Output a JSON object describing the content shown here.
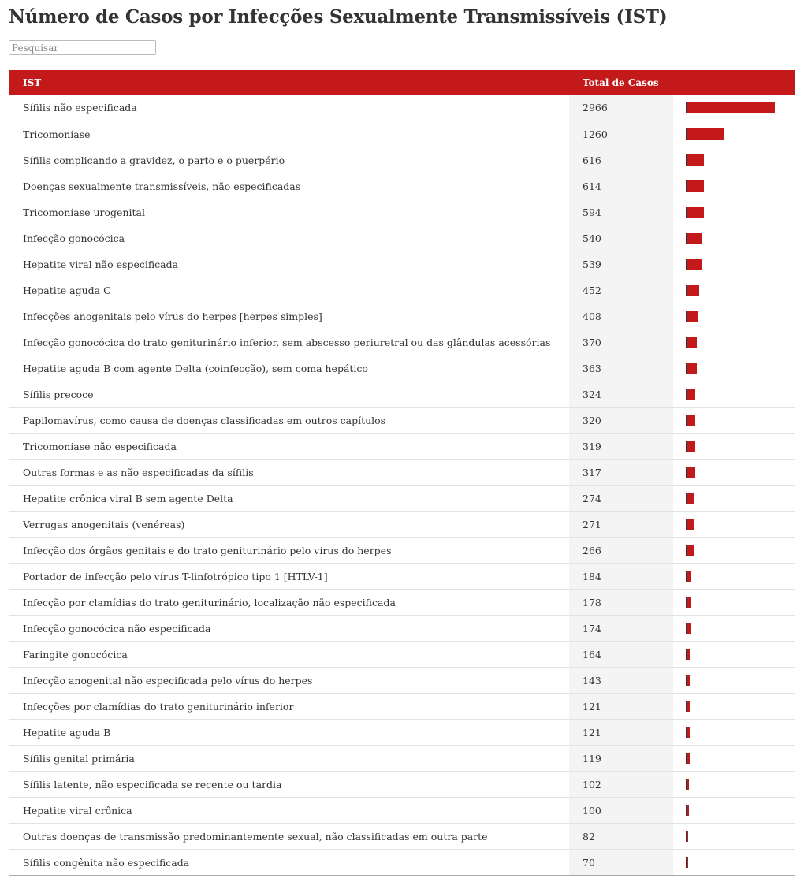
{
  "title": "Número de Casos por Infecções Sexualmente Transmissíveis (IST)",
  "search": {
    "placeholder": "Pesquisar",
    "value": ""
  },
  "colors": {
    "accent": "#c4191a",
    "value_column_bg": "#f4f4f4"
  },
  "chart_data": {
    "type": "table",
    "columns": [
      "IST",
      "Total de Casos"
    ],
    "rows": [
      {
        "label": "Sífilis não especificada",
        "value": 2966
      },
      {
        "label": "Tricomoníase",
        "value": 1260
      },
      {
        "label": "Sífilis complicando a gravidez, o parto e o puerpério",
        "value": 616
      },
      {
        "label": "Doenças sexualmente transmissíveis, não especificadas",
        "value": 614
      },
      {
        "label": "Tricomoníase urogenital",
        "value": 594
      },
      {
        "label": "Infecção gonocócica",
        "value": 540
      },
      {
        "label": "Hepatite viral não especificada",
        "value": 539
      },
      {
        "label": "Hepatite aguda C",
        "value": 452
      },
      {
        "label": "Infecções anogenitais pelo vírus do herpes [herpes simples]",
        "value": 408
      },
      {
        "label": "Infecção gonocócica do trato geniturinário inferior, sem abscesso periuretral ou das glândulas acessórias",
        "value": 370
      },
      {
        "label": "Hepatite aguda B com agente Delta (coinfecção), sem coma hepático",
        "value": 363
      },
      {
        "label": "Sífilis precoce",
        "value": 324
      },
      {
        "label": "Papilomavírus, como causa de doenças classificadas em outros capítulos",
        "value": 320
      },
      {
        "label": "Tricomoníase não especificada",
        "value": 319
      },
      {
        "label": "Outras formas e as não especificadas da sífilis",
        "value": 317
      },
      {
        "label": "Hepatite crônica viral B sem agente Delta",
        "value": 274
      },
      {
        "label": "Verrugas anogenitais (venéreas)",
        "value": 271
      },
      {
        "label": "Infecção dos órgãos genitais e do trato geniturinário pelo vírus do herpes",
        "value": 266
      },
      {
        "label": "Portador de infecção pelo vírus T-linfotrópico tipo 1 [HTLV-1]",
        "value": 184
      },
      {
        "label": "Infecção por clamídias do trato geniturinário, localização não especificada",
        "value": 178
      },
      {
        "label": "Infecção gonocócica não especificada",
        "value": 174
      },
      {
        "label": "Faringite gonocócica",
        "value": 164
      },
      {
        "label": "Infecção anogenital não especificada pelo vírus do herpes",
        "value": 143
      },
      {
        "label": "Infecções por clamídias do trato geniturinário inferior",
        "value": 121
      },
      {
        "label": "Hepatite aguda B",
        "value": 121
      },
      {
        "label": "Sífilis genital primária",
        "value": 119
      },
      {
        "label": "Sífilis latente, não especificada se recente ou tardia",
        "value": 102
      },
      {
        "label": "Hepatite viral crônica",
        "value": 100
      },
      {
        "label": "Outras doenças de transmissão predominantemente sexual, não classificadas em outra parte",
        "value": 82
      },
      {
        "label": "Sífilis congênita não especificada",
        "value": 70
      }
    ]
  }
}
